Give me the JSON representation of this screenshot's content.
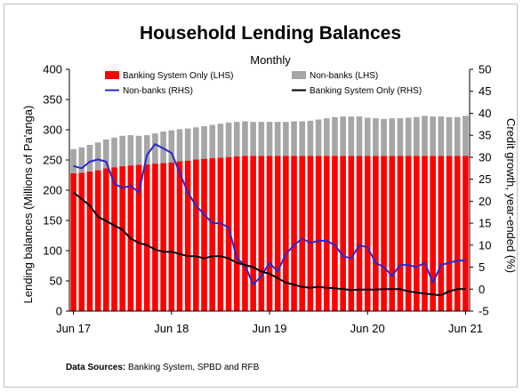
{
  "chart_data": {
    "type": "bar",
    "title": "Household Lending Balances",
    "subtitle": "Monthly",
    "ylabel_left": "Lending balances (Millions of Pa'anga)",
    "ylabel_right": "Credit growth, year-ended (%)",
    "xlabel": "",
    "ylim_left": [
      0,
      400
    ],
    "yticks_left": [
      0,
      50,
      100,
      150,
      200,
      250,
      300,
      350,
      400
    ],
    "ylim_right": [
      -5,
      50
    ],
    "yticks_right": [
      -5,
      0,
      5,
      10,
      15,
      20,
      25,
      30,
      35,
      40,
      45,
      50
    ],
    "x_tick_labels": [
      "Jun 17",
      "Jun 18",
      "Jun 19",
      "Jun 20",
      "Jun 21"
    ],
    "x_tick_indices": [
      0,
      12,
      24,
      36,
      48
    ],
    "legend": [
      {
        "label": "Banking System Only (LHS)",
        "kind": "bar",
        "color": "#ff0000"
      },
      {
        "label": "Non-banks (LHS)",
        "kind": "bar",
        "color": "#a6a6a6"
      },
      {
        "label": "Non-banks (RHS)",
        "kind": "line",
        "color": "#2929cc"
      },
      {
        "label": "Banking System Only (RHS)",
        "kind": "line",
        "color": "#000000"
      }
    ],
    "series": [
      {
        "name": "Banking System Only (LHS)",
        "axis": "left",
        "type": "bar",
        "color": "#ff0000",
        "values": [
          228,
          229,
          231,
          233,
          236,
          238,
          240,
          241,
          242,
          243,
          244,
          245,
          246,
          248,
          249,
          251,
          252,
          253,
          254,
          255,
          256,
          257,
          257,
          257,
          257,
          257,
          257,
          257,
          257,
          257,
          257,
          257,
          257,
          257,
          257,
          257,
          257,
          257,
          257,
          257,
          257,
          257,
          257,
          257,
          257,
          257,
          257,
          257,
          257
        ]
      },
      {
        "name": "Non-banks (LHS)",
        "axis": "left",
        "type": "bar",
        "color": "#a6a6a6",
        "values": [
          40,
          42,
          44,
          46,
          48,
          49,
          50,
          50,
          48,
          48,
          50,
          52,
          53,
          53,
          53,
          53,
          54,
          55,
          56,
          57,
          57,
          57,
          56,
          56,
          56,
          56,
          56,
          57,
          57,
          58,
          60,
          62,
          64,
          65,
          65,
          65,
          63,
          62,
          61,
          62,
          62,
          63,
          64,
          66,
          65,
          65,
          64,
          64,
          66
        ]
      },
      {
        "name": "Non-banks (RHS)",
        "axis": "right",
        "type": "line",
        "color": "#2929cc",
        "values": [
          28,
          27.5,
          29,
          29.5,
          29,
          24,
          23,
          23.5,
          22,
          30.5,
          33,
          32,
          31,
          26.5,
          22,
          19,
          17,
          15,
          15,
          14,
          7,
          5.5,
          1,
          3,
          6,
          4,
          8,
          10,
          11.5,
          10.5,
          11,
          11,
          10,
          7.5,
          7,
          10,
          9.5,
          6,
          5,
          3,
          5.5,
          5.5,
          5,
          6,
          1.5,
          5.5,
          6,
          6.5,
          6.5
        ]
      },
      {
        "name": "Banking System Only (RHS)",
        "axis": "right",
        "type": "line",
        "color": "#000000",
        "values": [
          22,
          20.5,
          19,
          16.5,
          15.5,
          14.5,
          13.5,
          11.5,
          10.5,
          10,
          9,
          8.5,
          8.5,
          8,
          7.5,
          7.5,
          7,
          7.5,
          7.5,
          7,
          6,
          5.5,
          5,
          4,
          3.5,
          2.5,
          1.5,
          1,
          0.5,
          0.3,
          0.5,
          0.3,
          0.2,
          0,
          -0.2,
          -0.1,
          -0.1,
          -0.1,
          0,
          0,
          0,
          -0.5,
          -0.8,
          -1,
          -1.2,
          -1.4,
          -0.5,
          0,
          0
        ]
      }
    ]
  },
  "sources": {
    "label": "Data Sources:",
    "text": " Banking System, SPBD and RFB"
  }
}
